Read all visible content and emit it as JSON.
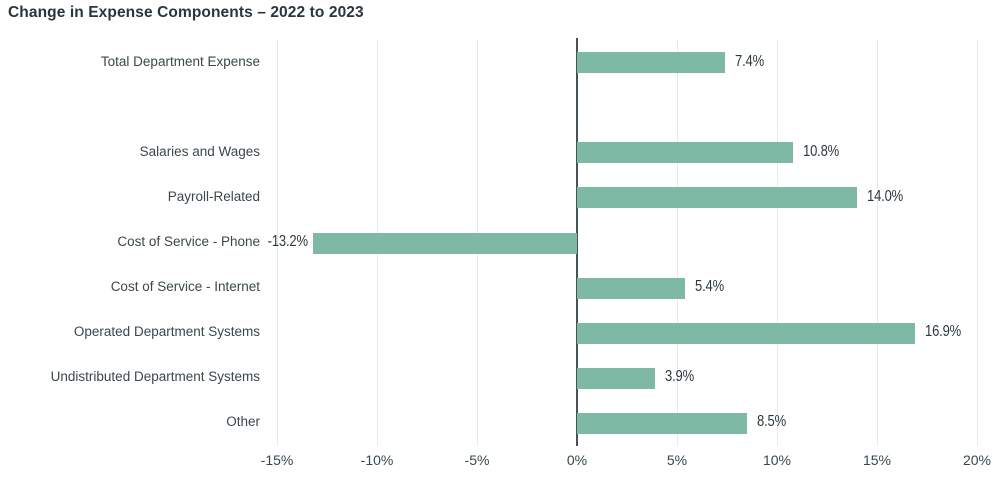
{
  "chart_data": {
    "type": "bar",
    "orientation": "horizontal",
    "title": "Change in Expense Components – 2022 to 2023",
    "categories": [
      "Total Department Expense",
      "Salaries and Wages",
      "Payroll-Related",
      "Cost of Service - Phone",
      "Cost of Service - Internet",
      "Operated Department Systems",
      "Undistributed Department Systems",
      "Other"
    ],
    "values": [
      7.4,
      10.8,
      14.0,
      -13.2,
      5.4,
      16.9,
      3.9,
      8.5
    ],
    "value_labels": [
      "7.4%",
      "10.8%",
      "14.0%",
      "-13.2%",
      "5.4%",
      "16.9%",
      "3.9%",
      "8.5%"
    ],
    "xticks": [
      -15,
      -10,
      -5,
      0,
      5,
      10,
      15,
      20
    ],
    "xtick_labels": [
      "-15%",
      "-10%",
      "-5%",
      "0%",
      "5%",
      "10%",
      "15%",
      "20%"
    ],
    "xlim": [
      -15,
      20
    ],
    "xlabel": "",
    "ylabel": "",
    "grid": true,
    "legend": false,
    "colors": {
      "bar": "#7db9a4",
      "gridline": "#e8e9e9",
      "zero_line": "#45525a",
      "title_text": "#2a363b",
      "label_text": "#3a474c",
      "value_text": "#2b383e"
    }
  }
}
